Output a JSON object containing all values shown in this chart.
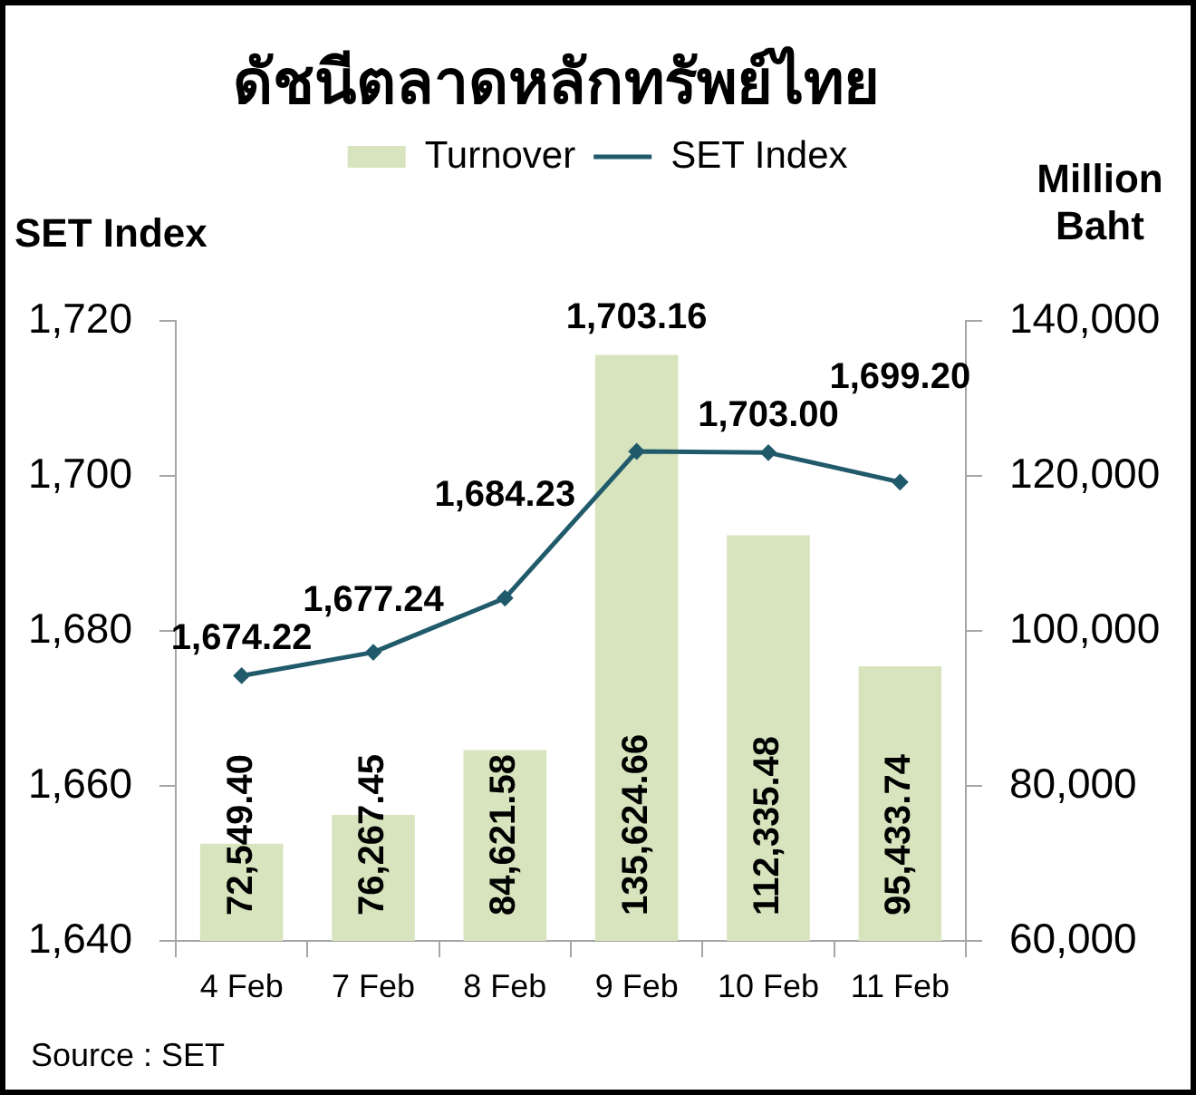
{
  "chart_data": {
    "type": "bar",
    "title": "ดัชนีตลาดหลักทรัพย์ไทย",
    "ylabel": "SET Index",
    "y2label": "Million Baht",
    "categories": [
      "4 Feb",
      "7 Feb",
      "8 Feb",
      "9 Feb",
      "10 Feb",
      "11 Feb"
    ],
    "series": [
      {
        "name": "Turnover",
        "axis": "y2",
        "color": "#d7e4bd",
        "values": [
          72549.4,
          76267.45,
          84621.58,
          135624.66,
          112335.48,
          95433.74
        ],
        "value_labels": [
          "72,549.40",
          "76,267.45",
          "84,621.58",
          "135,624.66",
          "112,335.48",
          "95,433.74"
        ]
      },
      {
        "name": "SET Index",
        "type": "line",
        "color": "#215b6b",
        "values": [
          1674.22,
          1677.24,
          1684.23,
          1703.16,
          1703.0,
          1699.2
        ],
        "value_labels": [
          "1,674.22",
          "1,677.24",
          "1,684.23",
          "1,703.16",
          "1,703.00",
          "1,699.20"
        ]
      }
    ],
    "ylim": [
      1640,
      1720
    ],
    "yticks": [
      {
        "value": 1640,
        "label": "1,640"
      },
      {
        "value": 1660,
        "label": "1,660"
      },
      {
        "value": 1680,
        "label": "1,680"
      },
      {
        "value": 1700,
        "label": "1,700"
      },
      {
        "value": 1720,
        "label": "1,720"
      }
    ],
    "y2lim": [
      60000,
      140000
    ],
    "y2ticks": [
      {
        "value": 60000,
        "label": "60,000"
      },
      {
        "value": 80000,
        "label": "80,000"
      },
      {
        "value": 100000,
        "label": "100,000"
      },
      {
        "value": 120000,
        "label": "120,000"
      },
      {
        "value": 140000,
        "label": "140,000"
      }
    ],
    "legend": "top",
    "marker": "diamond",
    "line_style": "solid",
    "annotations": [
      "Source : SET"
    ]
  }
}
